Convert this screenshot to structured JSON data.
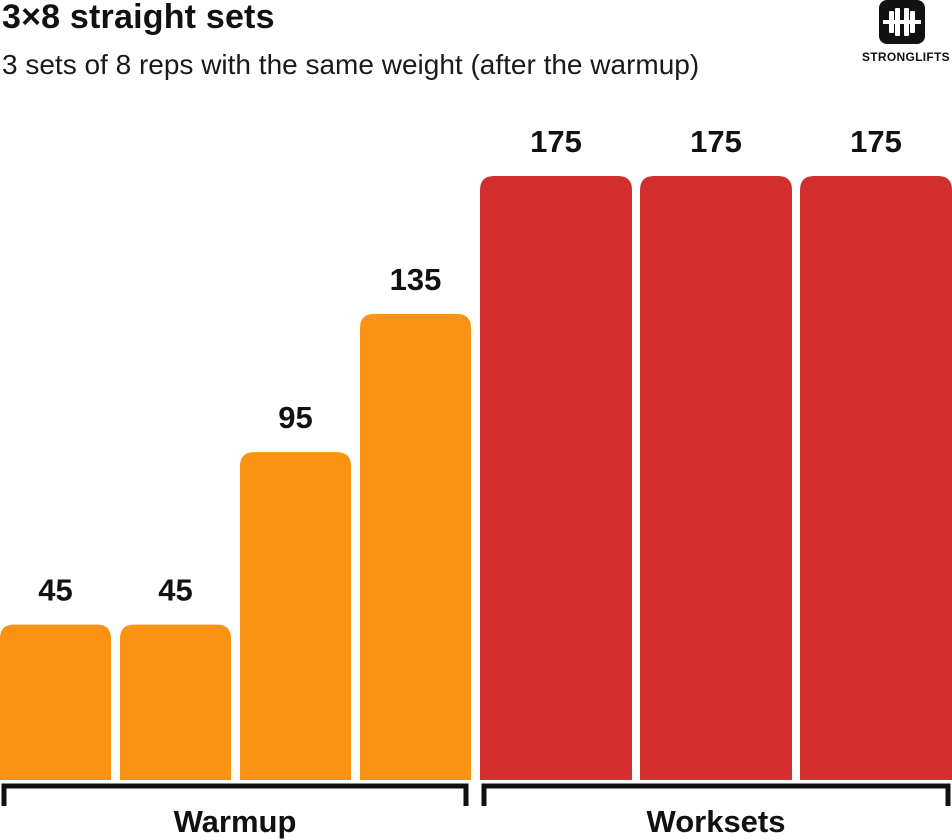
{
  "header": {
    "title": "3×8 straight sets",
    "subtitle": "3 sets of 8 reps with the same weight (after the warmup)"
  },
  "logo": {
    "icon": "barbell-icon",
    "text": "STRONGLIFTS"
  },
  "colors": {
    "warmup": "#FA9313",
    "worksets": "#D32F2F",
    "text": "#111111"
  },
  "chart_data": {
    "type": "bar",
    "title": "3×8 straight sets",
    "subtitle": "3 sets of 8 reps with the same weight (after the warmup)",
    "xlabel": "",
    "ylabel": "",
    "values": [
      45,
      45,
      95,
      135,
      175,
      175,
      175
    ],
    "data_labels": [
      "45",
      "45",
      "95",
      "135",
      "175",
      "175",
      "175"
    ],
    "groups": [
      {
        "name": "Warmup",
        "bar_indices": [
          0,
          1,
          2,
          3
        ],
        "color": "#FA9313"
      },
      {
        "name": "Worksets",
        "bar_indices": [
          4,
          5,
          6
        ],
        "color": "#D32F2F"
      }
    ],
    "grid": false,
    "legend": "none"
  }
}
